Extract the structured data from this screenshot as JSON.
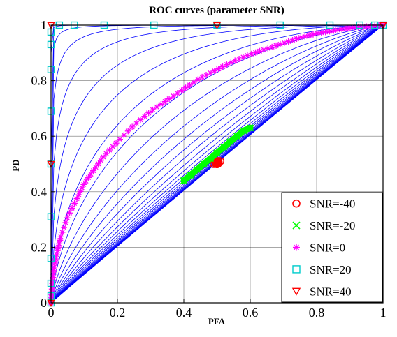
{
  "chart_data": {
    "type": "line",
    "title": "ROC curves (parameter SNR)",
    "xlabel": "PFA",
    "ylabel": "PD",
    "xlim": [
      0,
      1
    ],
    "ylim": [
      0,
      1
    ],
    "xticks": [
      "0",
      "0.2",
      "0.4",
      "0.6",
      "0.8",
      "1"
    ],
    "yticks": [
      "0",
      "0.2",
      "0.4",
      "0.6",
      "0.8",
      "1"
    ],
    "grid": true,
    "legend_position": "bottom-right",
    "background_curves": {
      "description_color": "#0000ff",
      "snr_start": -40,
      "snr_end": 40,
      "count": 41
    },
    "series": [
      {
        "name": "SNR=-40",
        "marker": "circle",
        "color": "#ff0000",
        "x": [
          0.49,
          0.5,
          0.51
        ],
        "y": [
          0.5,
          0.5,
          0.51
        ]
      },
      {
        "name": "SNR=-20",
        "marker": "x",
        "color": "#00ff00",
        "x": [
          0.4,
          0.42,
          0.44,
          0.46,
          0.48,
          0.5,
          0.52,
          0.54,
          0.56,
          0.58,
          0.6
        ],
        "y": [
          0.44,
          0.46,
          0.48,
          0.5,
          0.52,
          0.54,
          0.56,
          0.58,
          0.6,
          0.62,
          0.63
        ]
      },
      {
        "name": "SNR=0",
        "marker": "asterisk",
        "color": "#ff00ff",
        "x": [
          0.0,
          0.002,
          0.005,
          0.01,
          0.02,
          0.03,
          0.05,
          0.08,
          0.1,
          0.13,
          0.16,
          0.2,
          0.25,
          0.3,
          0.35,
          0.4,
          0.45,
          0.5,
          0.55,
          0.6,
          0.65,
          0.7,
          0.75,
          0.8,
          0.85,
          0.9,
          0.95,
          1.0
        ],
        "y": [
          0.0,
          0.04,
          0.08,
          0.13,
          0.19,
          0.24,
          0.31,
          0.38,
          0.43,
          0.48,
          0.53,
          0.58,
          0.64,
          0.69,
          0.73,
          0.77,
          0.81,
          0.84,
          0.87,
          0.895,
          0.915,
          0.935,
          0.955,
          0.97,
          0.98,
          0.99,
          0.995,
          1.0
        ]
      },
      {
        "name": "SNR=20",
        "marker": "square",
        "color": "#00cccc",
        "x": [
          0.0,
          0.0,
          0.0,
          0.0,
          0.0,
          0.0,
          0.0,
          0.0,
          0.0,
          0.0,
          0.025,
          0.07,
          0.16,
          0.31,
          0.5,
          0.69,
          0.84,
          0.93,
          0.975,
          1.0
        ],
        "y": [
          0.0,
          0.025,
          0.07,
          0.16,
          0.31,
          0.5,
          0.69,
          0.84,
          0.93,
          0.975,
          1.0,
          1.0,
          1.0,
          1.0,
          1.0,
          1.0,
          1.0,
          1.0,
          1.0,
          1.0
        ]
      },
      {
        "name": "SNR=40",
        "marker": "triangle-down",
        "color": "#ff0000",
        "x": [
          0.0,
          0.0,
          0.0,
          0.5,
          1.0
        ],
        "y": [
          0.0,
          0.5,
          1.0,
          1.0,
          1.0
        ]
      }
    ]
  }
}
